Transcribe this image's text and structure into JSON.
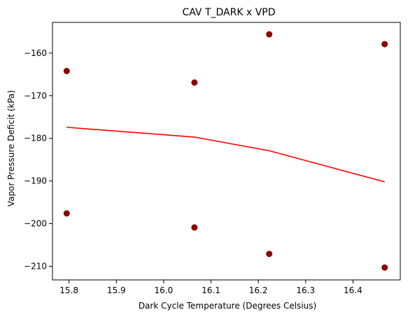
{
  "colors": {
    "points": "#8b0000",
    "fit_line": "#ff0000",
    "axes": "#000000"
  },
  "chart_data": {
    "type": "scatter",
    "title": "CAV T_DARK x VPD",
    "xlabel": "Dark Cycle Temperature (Degrees Celsius)",
    "ylabel": "Vapor Pressure Deficit (kPa)",
    "xlim": [
      15.765,
      16.5
    ],
    "ylim": [
      -213.2,
      -152.8
    ],
    "x_ticks": [
      15.8,
      15.9,
      16.0,
      16.1,
      16.2,
      16.3,
      16.4
    ],
    "x_tick_labels": [
      "15.8",
      "15.9",
      "16.0",
      "16.1",
      "16.2",
      "16.3",
      "16.4"
    ],
    "y_ticks": [
      -210,
      -200,
      -190,
      -180,
      -170,
      -160
    ],
    "y_tick_labels": [
      "−210",
      "−200",
      "−190",
      "−180",
      "−170",
      "−160"
    ],
    "grid": false,
    "series": [
      {
        "kind": "scatter",
        "x": [
          15.795,
          15.795,
          16.065,
          16.065,
          16.223,
          16.223,
          16.467,
          16.467
        ],
        "y": [
          -164.2,
          -197.6,
          -166.9,
          -200.9,
          -155.6,
          -207.1,
          -157.9,
          -210.3
        ]
      },
      {
        "kind": "line",
        "x": [
          15.795,
          16.065,
          16.223,
          16.467
        ],
        "y": [
          -177.4,
          -179.7,
          -182.9,
          -190.2
        ]
      }
    ]
  }
}
